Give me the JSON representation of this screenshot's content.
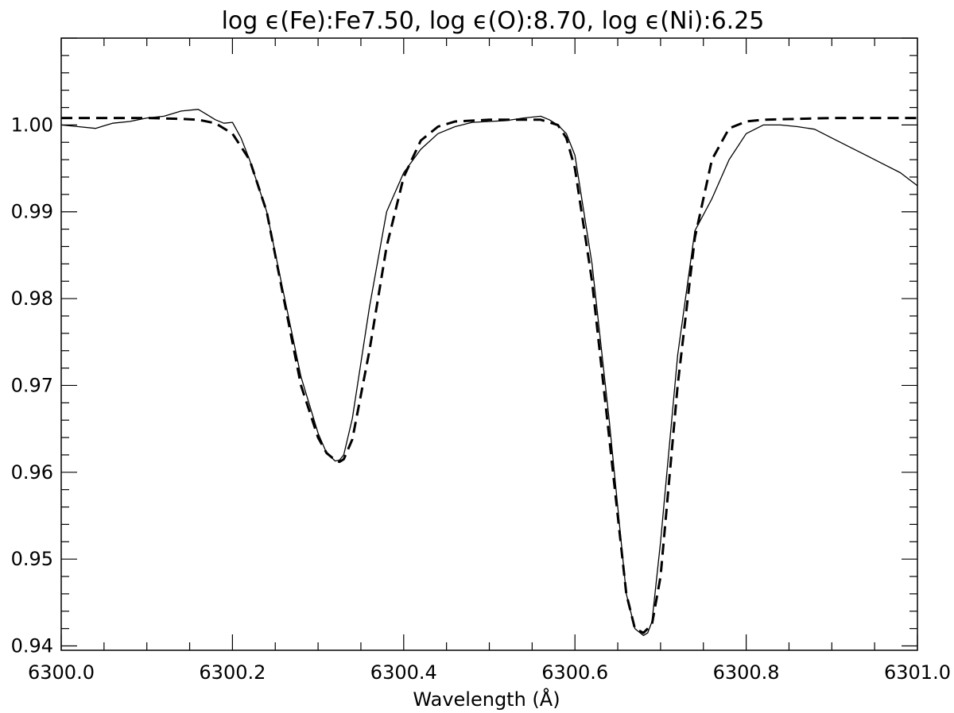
{
  "chart_data": {
    "type": "line",
    "title": "log ϵ(Fe):Fe7.50, log ϵ(O):8.70, log ϵ(Ni):6.25",
    "xlabel": "Wavelength (Å)",
    "ylabel": "",
    "xlim": [
      6300.0,
      6301.0
    ],
    "ylim": [
      0.9395,
      1.01
    ],
    "x_ticks": [
      6300.0,
      6300.2,
      6300.4,
      6300.6,
      6300.8,
      6301.0
    ],
    "x_tick_labels": [
      "6300.0",
      "6300.2",
      "6300.4",
      "6300.6",
      "6300.8",
      "6301.0"
    ],
    "y_ticks": [
      0.94,
      0.95,
      0.96,
      0.97,
      0.98,
      0.99,
      1.0
    ],
    "y_tick_labels": [
      "0.94",
      "0.95",
      "0.96",
      "0.97",
      "0.98",
      "0.99",
      "1.00"
    ],
    "grid": false,
    "legend": "none",
    "series": [
      {
        "style": "solid",
        "color": "#000000",
        "x": [
          6300.0,
          6300.02,
          6300.04,
          6300.06,
          6300.08,
          6300.1,
          6300.12,
          6300.14,
          6300.16,
          6300.17,
          6300.18,
          6300.19,
          6300.2,
          6300.21,
          6300.22,
          6300.24,
          6300.26,
          6300.28,
          6300.3,
          6300.31,
          6300.32,
          6300.325,
          6300.33,
          6300.34,
          6300.36,
          6300.38,
          6300.4,
          6300.42,
          6300.44,
          6300.46,
          6300.48,
          6300.5,
          6300.52,
          6300.54,
          6300.56,
          6300.57,
          6300.58,
          6300.59,
          6300.6,
          6300.62,
          6300.64,
          6300.66,
          6300.67,
          6300.68,
          6300.685,
          6300.69,
          6300.7,
          6300.72,
          6300.74,
          6300.76,
          6300.78,
          6300.8,
          6300.82,
          6300.84,
          6300.86,
          6300.88,
          6300.9,
          6300.92,
          6300.94,
          6300.96,
          6300.98,
          6301.0
        ],
        "y": [
          1.0,
          0.9998,
          0.9996,
          1.0002,
          1.0004,
          1.0008,
          1.001,
          1.0016,
          1.0018,
          1.0012,
          1.0006,
          1.0002,
          1.0003,
          0.9985,
          0.996,
          0.99,
          0.9805,
          0.971,
          0.9645,
          0.9622,
          0.9613,
          0.9614,
          0.962,
          0.9662,
          0.979,
          0.99,
          0.9945,
          0.9972,
          0.999,
          0.9998,
          1.0003,
          1.0004,
          1.0005,
          1.0008,
          1.001,
          1.0006,
          1.0,
          0.999,
          0.9965,
          0.984,
          0.966,
          0.946,
          0.942,
          0.9412,
          0.9415,
          0.9428,
          0.952,
          0.9735,
          0.9878,
          0.9915,
          0.996,
          0.999,
          1.0,
          1.0,
          0.9998,
          0.9995,
          0.9985,
          0.9975,
          0.9965,
          0.9955,
          0.9945,
          0.993
        ]
      },
      {
        "style": "dashed",
        "color": "#000000",
        "x": [
          6300.0,
          6300.05,
          6300.1,
          6300.14,
          6300.16,
          6300.18,
          6300.2,
          6300.22,
          6300.24,
          6300.26,
          6300.28,
          6300.3,
          6300.31,
          6300.32,
          6300.325,
          6300.33,
          6300.34,
          6300.36,
          6300.38,
          6300.4,
          6300.42,
          6300.44,
          6300.46,
          6300.5,
          6300.56,
          6300.58,
          6300.59,
          6300.6,
          6300.62,
          6300.64,
          6300.66,
          6300.67,
          6300.68,
          6300.69,
          6300.7,
          6300.72,
          6300.74,
          6300.76,
          6300.78,
          6300.8,
          6300.82,
          6300.86,
          6300.9,
          6301.0
        ],
        "y": [
          1.0008,
          1.0008,
          1.0008,
          1.0007,
          1.0006,
          1.0002,
          0.999,
          0.996,
          0.99,
          0.98,
          0.97,
          0.964,
          0.9622,
          0.9614,
          0.9612,
          0.9615,
          0.9638,
          0.974,
          0.986,
          0.994,
          0.9982,
          0.9998,
          1.0004,
          1.0006,
          1.0006,
          1.0,
          0.9985,
          0.995,
          0.982,
          0.964,
          0.946,
          0.942,
          0.9415,
          0.9425,
          0.948,
          0.97,
          0.987,
          0.996,
          0.9996,
          1.0004,
          1.0006,
          1.0007,
          1.0008,
          1.0008
        ]
      }
    ]
  }
}
